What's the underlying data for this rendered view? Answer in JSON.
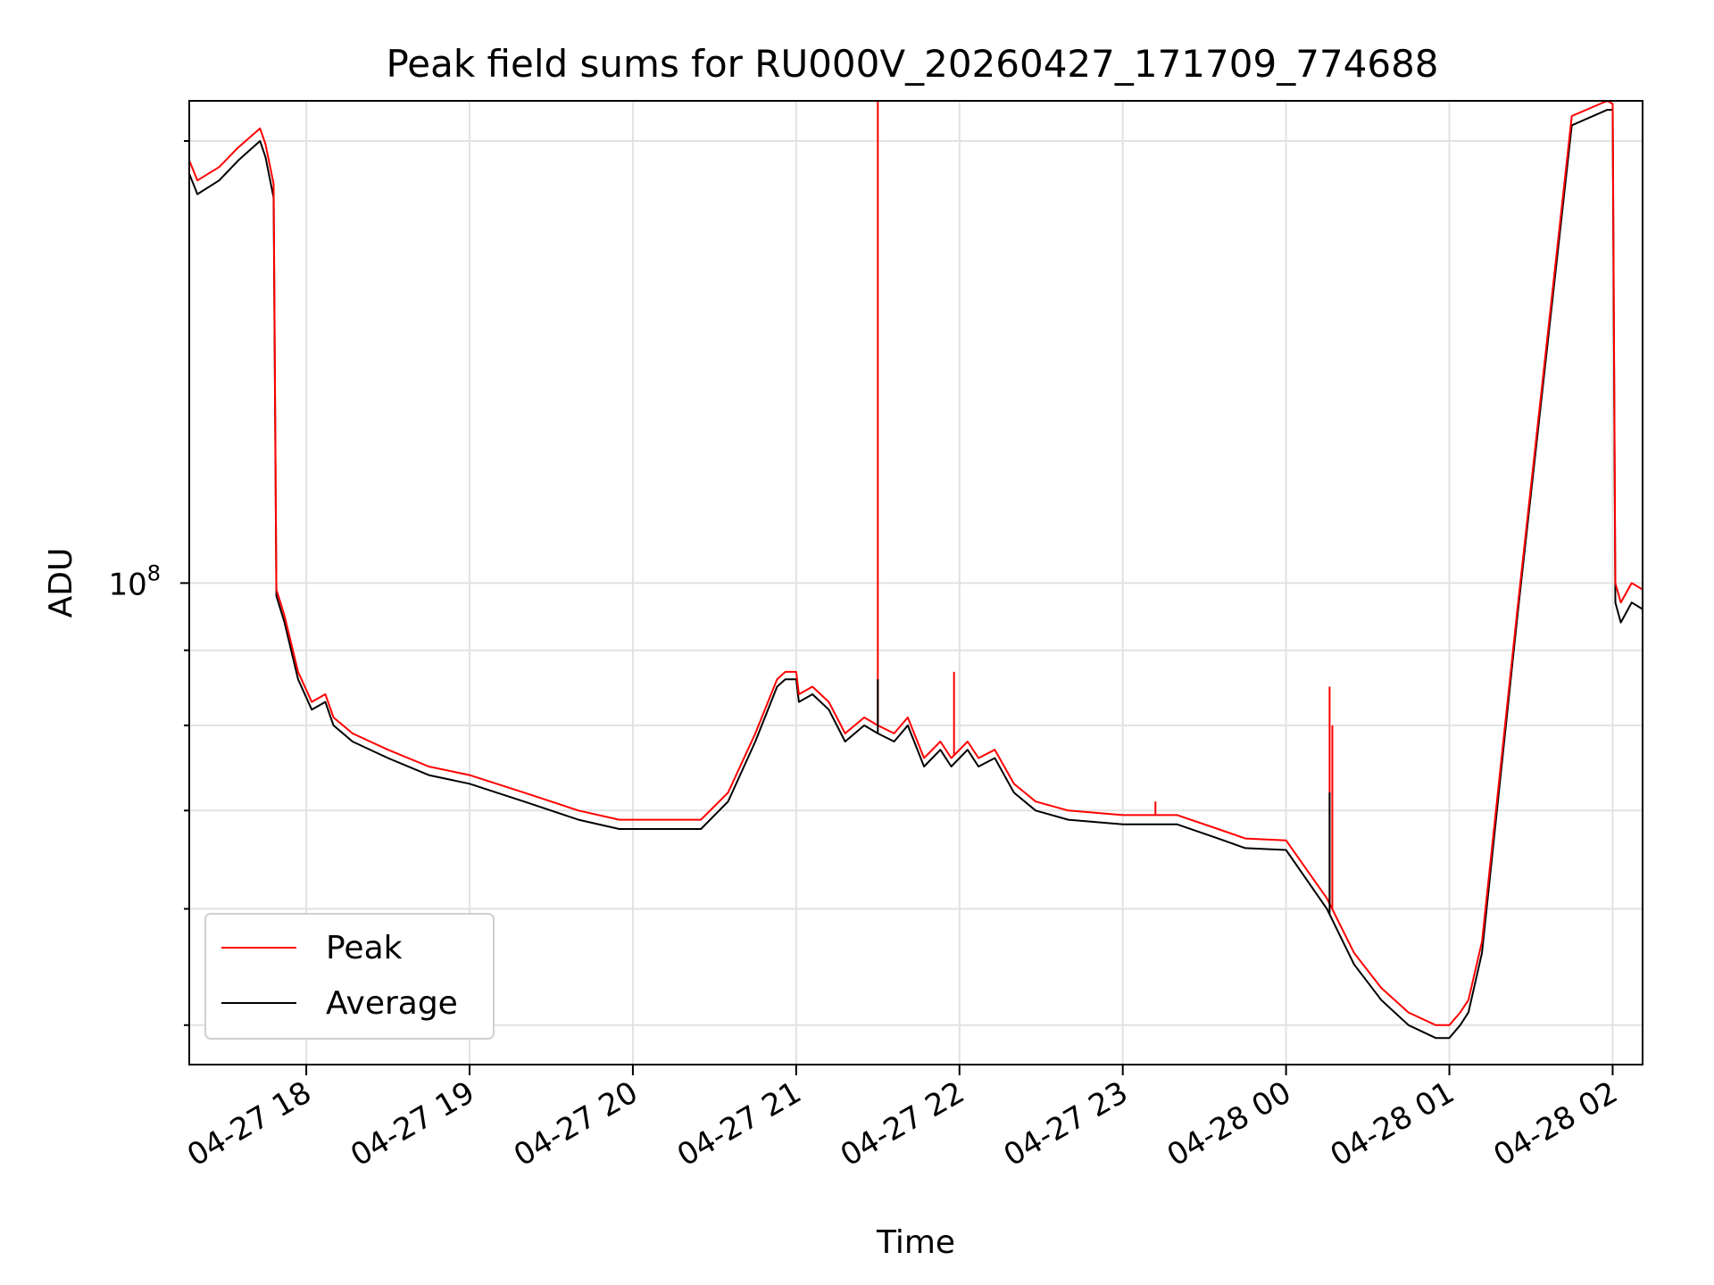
{
  "chart_data": {
    "type": "line",
    "title": "Peak field sums for RU000V_20260427_171709_774688",
    "xlabel": "Time",
    "ylabel": "ADU",
    "y_scale": "log",
    "y_major_tick_label": {
      "base": "10",
      "exponent": "8"
    },
    "y_major_tick_value": 100000000,
    "y_minor_ticks": [
      50000000,
      60000000,
      70000000,
      80000000,
      90000000,
      200000000
    ],
    "ylim": [
      47000000,
      213000000
    ],
    "xlim": [
      "2026-04-27 17:17",
      "2026-04-28 02:11"
    ],
    "x_ticks": [
      {
        "label": "04-27 18",
        "t": "2026-04-27 18:00"
      },
      {
        "label": "04-27 19",
        "t": "2026-04-27 19:00"
      },
      {
        "label": "04-27 20",
        "t": "2026-04-27 20:00"
      },
      {
        "label": "04-27 21",
        "t": "2026-04-27 21:00"
      },
      {
        "label": "04-27 22",
        "t": "2026-04-27 22:00"
      },
      {
        "label": "04-27 23",
        "t": "2026-04-27 23:00"
      },
      {
        "label": "04-28 00",
        "t": "2026-04-28 00:00"
      },
      {
        "label": "04-28 01",
        "t": "2026-04-28 01:00"
      },
      {
        "label": "04-28 02",
        "t": "2026-04-28 02:00"
      }
    ],
    "grid": true,
    "legend": {
      "placement": "lower-left"
    },
    "series": [
      {
        "name": "Average",
        "color": "#000000",
        "x": [
          "2026-04-27 17:17",
          "2026-04-27 17:19",
          "2026-04-27 17:20",
          "2026-04-27 17:28",
          "2026-04-27 17:35",
          "2026-04-27 17:43",
          "2026-04-27 17:45",
          "2026-04-27 17:48",
          "2026-04-27 17:49",
          "2026-04-27 17:52",
          "2026-04-27 17:57",
          "2026-04-27 18:02",
          "2026-04-27 18:07",
          "2026-04-27 18:10",
          "2026-04-27 18:17",
          "2026-04-27 18:30",
          "2026-04-27 18:45",
          "2026-04-27 19:00",
          "2026-04-27 19:20",
          "2026-04-27 19:40",
          "2026-04-27 19:55",
          "2026-04-27 20:10",
          "2026-04-27 20:25",
          "2026-04-27 20:35",
          "2026-04-27 20:45",
          "2026-04-27 20:53",
          "2026-04-27 20:56",
          "2026-04-27 21:00",
          "2026-04-27 21:01",
          "2026-04-27 21:06",
          "2026-04-27 21:12",
          "2026-04-27 21:18",
          "2026-04-27 21:25",
          "2026-04-27 21:30",
          "2026-04-27 21:36",
          "2026-04-27 21:41",
          "2026-04-27 21:47",
          "2026-04-27 21:53",
          "2026-04-27 21:57",
          "2026-04-27 22:03",
          "2026-04-27 22:07",
          "2026-04-27 22:13",
          "2026-04-27 22:20",
          "2026-04-27 22:28",
          "2026-04-27 22:40",
          "2026-04-27 23:00",
          "2026-04-27 23:20",
          "2026-04-27 23:35",
          "2026-04-27 23:45",
          "2026-04-28 00:00",
          "2026-04-28 00:15",
          "2026-04-28 00:25",
          "2026-04-28 00:35",
          "2026-04-28 00:45",
          "2026-04-28 00:55",
          "2026-04-28 01:00",
          "2026-04-28 01:04",
          "2026-04-28 01:07",
          "2026-04-28 01:12",
          "2026-04-28 01:25",
          "2026-04-28 01:45",
          "2026-04-28 01:58",
          "2026-04-28 02:00",
          "2026-04-28 02:01",
          "2026-04-28 02:03",
          "2026-04-28 02:07",
          "2026-04-28 02:11"
        ],
        "y": [
          190000000,
          186000000,
          184000000,
          188000000,
          194000000,
          200000000,
          195000000,
          183000000,
          98000000,
          94000000,
          86000000,
          82000000,
          83000000,
          80000000,
          78000000,
          76000000,
          74000000,
          73000000,
          71000000,
          69000000,
          68000000,
          68000000,
          68000000,
          71000000,
          78000000,
          85000000,
          86000000,
          86000000,
          83000000,
          84000000,
          82000000,
          78000000,
          80000000,
          79000000,
          78000000,
          80000000,
          75000000,
          77000000,
          75000000,
          77000000,
          75000000,
          76000000,
          72000000,
          70000000,
          69000000,
          68500000,
          68500000,
          67000000,
          66000000,
          65800000,
          60000000,
          55000000,
          52000000,
          50000000,
          49000000,
          49000000,
          50000000,
          51000000,
          56000000,
          95000000,
          205000000,
          210000000,
          210000000,
          97000000,
          94000000,
          97000000,
          96000000
        ]
      },
      {
        "name": "Peak",
        "color": "#ff0000",
        "x": [
          "2026-04-27 17:17",
          "2026-04-27 17:19",
          "2026-04-27 17:20",
          "2026-04-27 17:28",
          "2026-04-27 17:35",
          "2026-04-27 17:43",
          "2026-04-27 17:45",
          "2026-04-27 17:48",
          "2026-04-27 17:49",
          "2026-04-27 17:52",
          "2026-04-27 17:57",
          "2026-04-27 18:02",
          "2026-04-27 18:07",
          "2026-04-27 18:10",
          "2026-04-27 18:17",
          "2026-04-27 18:30",
          "2026-04-27 18:45",
          "2026-04-27 19:00",
          "2026-04-27 19:20",
          "2026-04-27 19:40",
          "2026-04-27 19:55",
          "2026-04-27 20:10",
          "2026-04-27 20:25",
          "2026-04-27 20:35",
          "2026-04-27 20:45",
          "2026-04-27 20:53",
          "2026-04-27 20:56",
          "2026-04-27 21:00",
          "2026-04-27 21:01",
          "2026-04-27 21:06",
          "2026-04-27 21:12",
          "2026-04-27 21:18",
          "2026-04-27 21:25",
          "2026-04-27 21:30",
          "2026-04-27 21:36",
          "2026-04-27 21:41",
          "2026-04-27 21:47",
          "2026-04-27 21:53",
          "2026-04-27 21:57",
          "2026-04-27 22:03",
          "2026-04-27 22:07",
          "2026-04-27 22:13",
          "2026-04-27 22:20",
          "2026-04-27 22:28",
          "2026-04-27 22:40",
          "2026-04-27 23:00",
          "2026-04-27 23:20",
          "2026-04-27 23:35",
          "2026-04-27 23:45",
          "2026-04-28 00:00",
          "2026-04-28 00:15",
          "2026-04-28 00:25",
          "2026-04-28 00:35",
          "2026-04-28 00:45",
          "2026-04-28 00:55",
          "2026-04-28 01:00",
          "2026-04-28 01:04",
          "2026-04-28 01:07",
          "2026-04-28 01:12",
          "2026-04-28 01:25",
          "2026-04-28 01:45",
          "2026-04-28 01:58",
          "2026-04-28 02:00",
          "2026-04-28 02:01",
          "2026-04-28 02:03",
          "2026-04-28 02:07",
          "2026-04-28 02:11"
        ],
        "y": [
          194000000,
          190000000,
          188000000,
          192000000,
          198000000,
          204000000,
          199000000,
          187000000,
          99000000,
          95000000,
          87000000,
          83000000,
          84000000,
          81000000,
          79000000,
          77000000,
          75000000,
          74000000,
          72000000,
          70000000,
          69000000,
          69000000,
          69000000,
          72000000,
          79000000,
          86000000,
          87000000,
          87000000,
          84000000,
          85000000,
          83000000,
          79000000,
          81000000,
          80000000,
          79000000,
          81000000,
          76000000,
          78000000,
          76000000,
          78000000,
          76000000,
          77000000,
          73000000,
          71000000,
          70000000,
          69500000,
          69500000,
          68000000,
          67000000,
          66800000,
          61000000,
          56000000,
          53000000,
          51000000,
          50000000,
          50000000,
          51000000,
          52000000,
          57000000,
          96000000,
          208000000,
          213000000,
          212000000,
          100000000,
          97000000,
          100000000,
          99000000
        ]
      }
    ],
    "spikes": [
      {
        "series": "Peak",
        "t": "2026-04-27 21:30",
        "y": 213000000
      },
      {
        "series": "Peak",
        "t": "2026-04-27 21:58",
        "y": 87000000
      },
      {
        "series": "Peak",
        "t": "2026-04-28 00:16",
        "y": 85000000
      },
      {
        "series": "Peak",
        "t": "2026-04-28 00:17",
        "y": 80000000
      },
      {
        "series": "Peak",
        "t": "2026-04-27 23:12",
        "y": 71000000
      },
      {
        "series": "Average",
        "t": "2026-04-27 21:30",
        "y": 86000000
      },
      {
        "series": "Average",
        "t": "2026-04-28 00:16",
        "y": 72000000
      }
    ]
  }
}
